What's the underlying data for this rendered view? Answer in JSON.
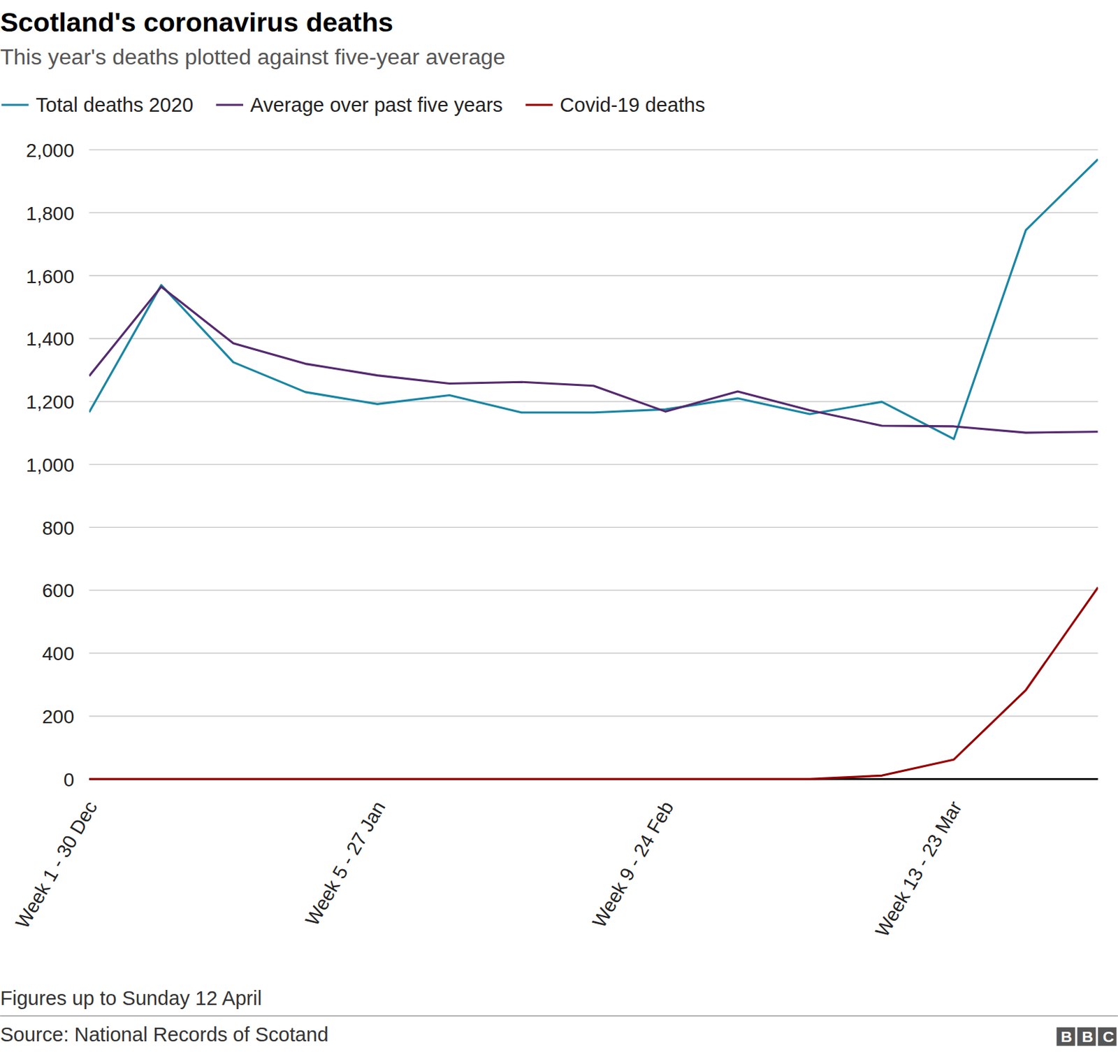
{
  "chart_data": {
    "type": "line",
    "title": "Scotland's coronavirus deaths",
    "subtitle": "This year's deaths plotted against five-year average",
    "note": "Figures up to Sunday 12 April",
    "source": "Source: National Records of Scotand",
    "logo": "BBC",
    "categories": [
      "Week 1 - 30 Dec",
      null,
      null,
      null,
      "Week 5 - 27 Jan",
      null,
      null,
      null,
      "Week 9 - 24 Feb",
      null,
      null,
      null,
      "Week 13 - 23 Mar",
      null,
      null
    ],
    "series": [
      {
        "name": "Total deaths 2020",
        "color": "#1a86a3",
        "values": [
          1166,
          1570,
          1325,
          1230,
          1192,
          1220,
          1165,
          1165,
          1175,
          1210,
          1160,
          1199,
          1081,
          1745,
          1970
        ]
      },
      {
        "name": "Average over past five years",
        "color": "#55296f",
        "values": [
          1281,
          1565,
          1385,
          1320,
          1283,
          1257,
          1262,
          1250,
          1168,
          1232,
          1172,
          1123,
          1121,
          1101,
          1104
        ]
      },
      {
        "name": "Covid-19 deaths",
        "color": "#990000",
        "values": [
          0,
          0,
          0,
          0,
          0,
          0,
          0,
          0,
          0,
          0,
          0,
          11,
          62,
          283,
          609
        ]
      }
    ],
    "ylim": [
      0,
      2000
    ],
    "yticks": [
      0,
      200,
      400,
      600,
      800,
      {
        "value": 1000,
        "label": "1,000"
      },
      {
        "value": 1200,
        "label": "1,200"
      },
      {
        "value": 1400,
        "label": "1,400"
      },
      {
        "value": 1600,
        "label": "1,600"
      },
      {
        "value": 1800,
        "label": "1,800"
      },
      {
        "value": 2000,
        "label": "2,000"
      }
    ],
    "grid": true,
    "legend": "top"
  }
}
